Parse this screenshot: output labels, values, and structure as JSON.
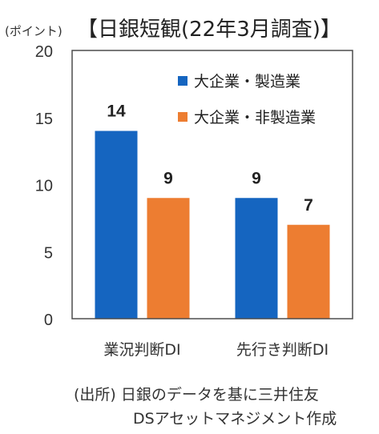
{
  "header": {
    "unit_label": "(ポイント)",
    "title": "【日銀短観(22年3月調査)】"
  },
  "chart_data": {
    "type": "bar",
    "title": "【日銀短観(22年3月調査)】",
    "ylabel": "(ポイント)",
    "categories": [
      "業況判断DI",
      "先行き判断DI"
    ],
    "series": [
      {
        "name": "大企業・製造業",
        "color": "#1565C0",
        "values": [
          14,
          9
        ]
      },
      {
        "name": "大企業・非製造業",
        "color": "#ED7D31",
        "values": [
          9,
          7
        ]
      }
    ],
    "ylim": [
      0,
      20
    ],
    "yticks": [
      "0",
      "5",
      "10",
      "15",
      "20"
    ],
    "grid": false,
    "legend_position": "top-right",
    "data_labels": true
  },
  "footer": {
    "source_line1": "(出所) 日銀のデータを基に三井住友",
    "source_line2": "DSアセットマネジメント作成"
  }
}
